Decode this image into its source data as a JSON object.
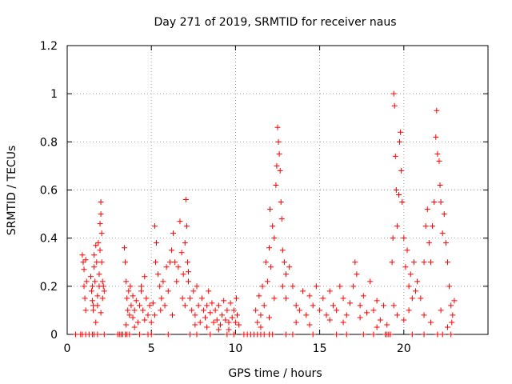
{
  "chart_data": {
    "type": "scatter",
    "title": "Day 271 of 2019, SRMTID for receiver naus",
    "xlabel": "GPS time / hours",
    "ylabel": "SRMTID / TECUs",
    "xlim": [
      0,
      25
    ],
    "ylim": [
      0,
      1.2
    ],
    "xticks": [
      0,
      5,
      10,
      15,
      20
    ],
    "yticks": [
      0,
      0.2,
      0.4,
      0.6,
      0.8,
      1,
      1.2
    ],
    "ytick_labels": [
      "0",
      "0.2",
      "0.4",
      "0.6",
      "0.8",
      "1",
      "1.2"
    ],
    "grid": true,
    "marker": "plus",
    "color": "#ff0000",
    "series": [
      {
        "name": "SRMTID",
        "points": [
          [
            0.9,
            0.33
          ],
          [
            0.95,
            0.3
          ],
          [
            1.0,
            0.27
          ],
          [
            1.0,
            0.2
          ],
          [
            1.05,
            0.15
          ],
          [
            1.1,
            0.31
          ],
          [
            1.1,
            0.1
          ],
          [
            1.15,
            0.22
          ],
          [
            1.4,
            0.24
          ],
          [
            1.45,
            0.18
          ],
          [
            1.5,
            0.2
          ],
          [
            1.5,
            0.14
          ],
          [
            1.55,
            0.12
          ],
          [
            1.6,
            0.28
          ],
          [
            1.6,
            0.33
          ],
          [
            1.65,
            0.22
          ],
          [
            1.7,
            0.37
          ],
          [
            1.75,
            0.3
          ],
          [
            1.8,
            0.16
          ],
          [
            1.8,
            0.12
          ],
          [
            1.85,
            0.38
          ],
          [
            1.9,
            0.25
          ],
          [
            1.9,
            0.2
          ],
          [
            1.95,
            0.46
          ],
          [
            2.0,
            0.5
          ],
          [
            2.0,
            0.55
          ],
          [
            2.05,
            0.42
          ],
          [
            2.05,
            0.3
          ],
          [
            2.1,
            0.22
          ],
          [
            2.1,
            0.15
          ],
          [
            2.15,
            0.2
          ],
          [
            2.0,
            0.09
          ],
          [
            1.55,
            0.1
          ],
          [
            1.7,
            0.05
          ],
          [
            2.2,
            0.18
          ],
          [
            1.95,
            0.35
          ],
          [
            3.4,
            0.36
          ],
          [
            3.45,
            0.3
          ],
          [
            3.5,
            0.22
          ],
          [
            3.55,
            0.15
          ],
          [
            3.6,
            0.1
          ],
          [
            3.65,
            0.18
          ],
          [
            3.7,
            0.08
          ],
          [
            3.75,
            0.2
          ],
          [
            3.8,
            0.12
          ],
          [
            3.9,
            0.16
          ],
          [
            4.0,
            0.1
          ],
          [
            4.1,
            0.14
          ],
          [
            4.2,
            0.05
          ],
          [
            4.3,
            0.12
          ],
          [
            4.4,
            0.18
          ],
          [
            4.5,
            0.1
          ],
          [
            4.6,
            0.24
          ],
          [
            4.7,
            0.15
          ],
          [
            4.8,
            0.08
          ],
          [
            4.9,
            0.12
          ],
          [
            5.0,
            0.05
          ],
          [
            5.1,
            0.13
          ],
          [
            5.2,
            0.08
          ],
          [
            3.5,
            0.04
          ],
          [
            4.0,
            0.03
          ],
          [
            4.6,
            0.06
          ],
          [
            4.4,
            0.2
          ],
          [
            3.9,
            0.07
          ],
          [
            5.2,
            0.45
          ],
          [
            5.25,
            0.3
          ],
          [
            5.3,
            0.38
          ],
          [
            5.4,
            0.25
          ],
          [
            5.5,
            0.2
          ],
          [
            5.6,
            0.15
          ],
          [
            5.7,
            0.22
          ],
          [
            5.8,
            0.12
          ],
          [
            5.9,
            0.28
          ],
          [
            6.0,
            0.18
          ],
          [
            6.1,
            0.3
          ],
          [
            6.2,
            0.35
          ],
          [
            6.3,
            0.42
          ],
          [
            6.4,
            0.3
          ],
          [
            6.5,
            0.22
          ],
          [
            6.6,
            0.28
          ],
          [
            6.7,
            0.47
          ],
          [
            6.8,
            0.34
          ],
          [
            6.9,
            0.25
          ],
          [
            7.0,
            0.38
          ],
          [
            7.05,
            0.56
          ],
          [
            7.1,
            0.45
          ],
          [
            7.15,
            0.3
          ],
          [
            7.2,
            0.26
          ],
          [
            5.55,
            0.1
          ],
          [
            6.25,
            0.08
          ],
          [
            6.85,
            0.15
          ],
          [
            7.0,
            0.12
          ],
          [
            7.2,
            0.22
          ],
          [
            7.3,
            0.15
          ],
          [
            7.4,
            0.1
          ],
          [
            7.5,
            0.18
          ],
          [
            7.6,
            0.08
          ],
          [
            7.7,
            0.2
          ],
          [
            7.8,
            0.12
          ],
          [
            7.9,
            0.05
          ],
          [
            8.0,
            0.15
          ],
          [
            8.1,
            0.1
          ],
          [
            8.2,
            0.07
          ],
          [
            8.3,
            0.12
          ],
          [
            8.4,
            0.18
          ],
          [
            8.5,
            0.09
          ],
          [
            8.6,
            0.13
          ],
          [
            8.7,
            0.05
          ],
          [
            8.8,
            0.1
          ],
          [
            8.9,
            0.06
          ],
          [
            9.0,
            0.12
          ],
          [
            9.1,
            0.04
          ],
          [
            9.2,
            0.08
          ],
          [
            9.3,
            0.14
          ],
          [
            9.4,
            0.06
          ],
          [
            9.5,
            0.1
          ],
          [
            9.6,
            0.05
          ],
          [
            9.7,
            0.13
          ],
          [
            9.8,
            0.07
          ],
          [
            9.9,
            0.1
          ],
          [
            10.0,
            0.05
          ],
          [
            10.05,
            0.15
          ],
          [
            10.1,
            0.08
          ],
          [
            10.2,
            0.04
          ],
          [
            8.3,
            0.03
          ],
          [
            9.0,
            0.02
          ],
          [
            9.6,
            0.02
          ],
          [
            7.6,
            0.04
          ],
          [
            11.2,
            0.1
          ],
          [
            11.3,
            0.05
          ],
          [
            11.4,
            0.16
          ],
          [
            11.5,
            0.08
          ],
          [
            11.6,
            0.2
          ],
          [
            11.7,
            0.12
          ],
          [
            11.8,
            0.3
          ],
          [
            11.9,
            0.22
          ],
          [
            12.0,
            0.36
          ],
          [
            12.05,
            0.52
          ],
          [
            12.1,
            0.28
          ],
          [
            12.2,
            0.45
          ],
          [
            12.3,
            0.4
          ],
          [
            12.4,
            0.62
          ],
          [
            12.45,
            0.7
          ],
          [
            12.5,
            0.86
          ],
          [
            12.55,
            0.8
          ],
          [
            12.6,
            0.75
          ],
          [
            12.65,
            0.68
          ],
          [
            12.7,
            0.55
          ],
          [
            12.75,
            0.48
          ],
          [
            12.8,
            0.35
          ],
          [
            12.9,
            0.3
          ],
          [
            13.0,
            0.25
          ],
          [
            11.5,
            0.03
          ],
          [
            12.0,
            0.07
          ],
          [
            12.3,
            0.15
          ],
          [
            12.8,
            0.2
          ],
          [
            13.0,
            0.15
          ],
          [
            13.2,
            0.28
          ],
          [
            13.4,
            0.2
          ],
          [
            13.6,
            0.12
          ],
          [
            13.8,
            0.1
          ],
          [
            14.0,
            0.18
          ],
          [
            14.2,
            0.08
          ],
          [
            14.4,
            0.16
          ],
          [
            14.6,
            0.12
          ],
          [
            14.8,
            0.2
          ],
          [
            15.0,
            0.1
          ],
          [
            15.2,
            0.15
          ],
          [
            15.4,
            0.08
          ],
          [
            15.6,
            0.18
          ],
          [
            15.8,
            0.12
          ],
          [
            16.0,
            0.1
          ],
          [
            16.2,
            0.2
          ],
          [
            16.4,
            0.15
          ],
          [
            16.6,
            0.08
          ],
          [
            16.8,
            0.13
          ],
          [
            17.0,
            0.2
          ],
          [
            17.1,
            0.3
          ],
          [
            17.2,
            0.25
          ],
          [
            17.4,
            0.12
          ],
          [
            17.6,
            0.16
          ],
          [
            17.8,
            0.09
          ],
          [
            18.0,
            0.22
          ],
          [
            18.2,
            0.1
          ],
          [
            18.4,
            0.14
          ],
          [
            18.6,
            0.06
          ],
          [
            18.8,
            0.12
          ],
          [
            19.0,
            0.04
          ],
          [
            13.6,
            0.05
          ],
          [
            14.4,
            0.04
          ],
          [
            15.6,
            0.06
          ],
          [
            16.4,
            0.05
          ],
          [
            17.4,
            0.07
          ],
          [
            18.4,
            0.03
          ],
          [
            19.3,
            0.3
          ],
          [
            19.35,
            0.4
          ],
          [
            19.4,
            1.0
          ],
          [
            19.45,
            0.95
          ],
          [
            19.5,
            0.74
          ],
          [
            19.55,
            0.6
          ],
          [
            19.6,
            0.45
          ],
          [
            19.7,
            0.58
          ],
          [
            19.75,
            0.8
          ],
          [
            19.8,
            0.84
          ],
          [
            19.85,
            0.68
          ],
          [
            19.9,
            0.55
          ],
          [
            20.0,
            0.4
          ],
          [
            20.1,
            0.28
          ],
          [
            20.2,
            0.35
          ],
          [
            20.3,
            0.2
          ],
          [
            20.4,
            0.25
          ],
          [
            20.5,
            0.15
          ],
          [
            20.6,
            0.3
          ],
          [
            20.7,
            0.18
          ],
          [
            19.4,
            0.12
          ],
          [
            19.6,
            0.08
          ],
          [
            20.0,
            0.06
          ],
          [
            20.3,
            0.1
          ],
          [
            20.8,
            0.22
          ],
          [
            21.0,
            0.15
          ],
          [
            21.2,
            0.3
          ],
          [
            21.3,
            0.45
          ],
          [
            21.4,
            0.52
          ],
          [
            21.5,
            0.38
          ],
          [
            21.6,
            0.3
          ],
          [
            21.7,
            0.45
          ],
          [
            21.8,
            0.55
          ],
          [
            21.9,
            0.82
          ],
          [
            21.95,
            0.93
          ],
          [
            22.0,
            0.75
          ],
          [
            22.1,
            0.72
          ],
          [
            22.15,
            0.62
          ],
          [
            22.2,
            0.55
          ],
          [
            22.3,
            0.42
          ],
          [
            22.4,
            0.5
          ],
          [
            22.5,
            0.38
          ],
          [
            22.6,
            0.3
          ],
          [
            22.7,
            0.2
          ],
          [
            22.8,
            0.12
          ],
          [
            22.9,
            0.08
          ],
          [
            23.0,
            0.14
          ],
          [
            22.85,
            0.05
          ],
          [
            21.2,
            0.08
          ],
          [
            21.6,
            0.05
          ],
          [
            22.2,
            0.1
          ],
          [
            22.6,
            0.03
          ]
        ],
        "zero_points": [
          0.5,
          0.8,
          0.9,
          1.1,
          1.3,
          1.5,
          1.6,
          1.8,
          2.2,
          3.0,
          3.1,
          3.2,
          3.3,
          3.45,
          3.55,
          3.7,
          4.3,
          4.8,
          5.0,
          6.0,
          7.3,
          7.7,
          8.5,
          9.5,
          9.9,
          10.5,
          10.7,
          10.9,
          11.1,
          11.3,
          11.5,
          11.7,
          12.0,
          12.2,
          13.0,
          13.4,
          14.6,
          16.0,
          16.6,
          17.6,
          18.2,
          18.9,
          19.0,
          19.1,
          19.2,
          20.5,
          21.2,
          22.0,
          22.3,
          22.8
        ]
      }
    ]
  }
}
